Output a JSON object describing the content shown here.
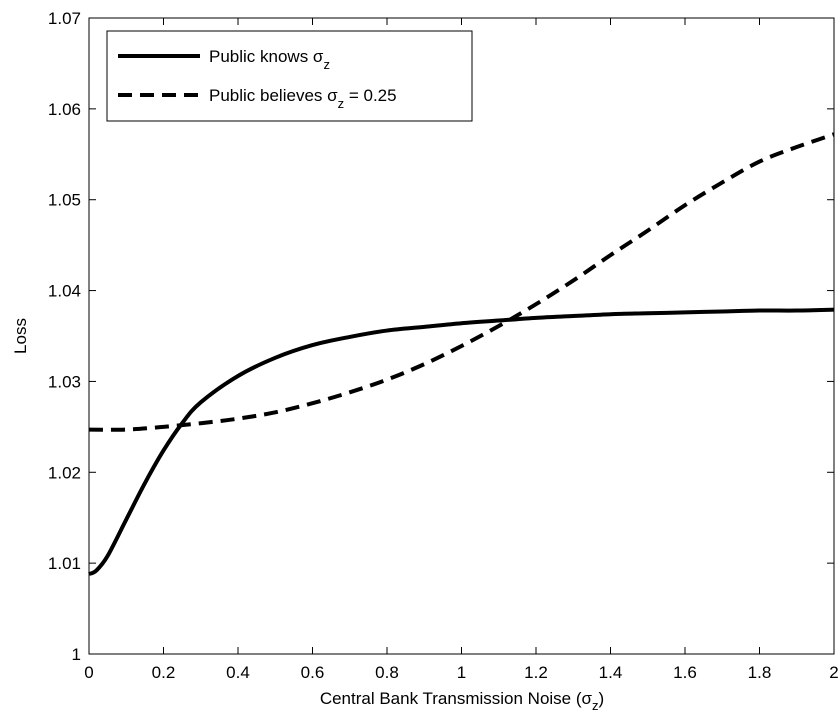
{
  "chart_data": {
    "type": "line",
    "title": "",
    "xlabel": "Central Bank Transmission Noise (σ",
    "xlabel_sub": "z",
    "xlabel_close": ")",
    "ylabel": "Loss",
    "xlim": [
      0,
      2
    ],
    "ylim": [
      1,
      1.07
    ],
    "xticks": [
      0,
      0.2,
      0.4,
      0.6,
      0.8,
      1,
      1.2,
      1.4,
      1.6,
      1.8,
      2
    ],
    "xtick_labels": [
      "0",
      "0.2",
      "0.4",
      "0.6",
      "0.8",
      "1",
      "1.2",
      "1.4",
      "1.6",
      "1.8",
      "2"
    ],
    "yticks": [
      1,
      1.01,
      1.02,
      1.03,
      1.04,
      1.05,
      1.06,
      1.07
    ],
    "ytick_labels": [
      "1",
      "1.01",
      "1.02",
      "1.03",
      "1.04",
      "1.05",
      "1.06",
      "1.07"
    ],
    "grid": false,
    "legend_position": "top-left",
    "series": [
      {
        "name": "Public knows σ",
        "name_sub": "z",
        "name_suffix": "",
        "style": "solid",
        "color": "#000000",
        "x": [
          0,
          0.02,
          0.05,
          0.1,
          0.15,
          0.2,
          0.25,
          0.3,
          0.4,
          0.5,
          0.6,
          0.7,
          0.8,
          0.9,
          1.0,
          1.1,
          1.2,
          1.3,
          1.4,
          1.5,
          1.6,
          1.7,
          1.8,
          1.9,
          2.0
        ],
        "y": [
          1.0088,
          1.0092,
          1.0108,
          1.0148,
          1.0188,
          1.0224,
          1.0254,
          1.0277,
          1.0306,
          1.0326,
          1.034,
          1.0349,
          1.0356,
          1.036,
          1.0364,
          1.0367,
          1.037,
          1.0372,
          1.0374,
          1.0375,
          1.0376,
          1.0377,
          1.0378,
          1.0378,
          1.0379
        ]
      },
      {
        "name": "Public believes σ",
        "name_sub": "z",
        "name_suffix": " = 0.25",
        "style": "dashed",
        "color": "#000000",
        "x": [
          0,
          0.1,
          0.2,
          0.3,
          0.4,
          0.5,
          0.6,
          0.7,
          0.8,
          0.9,
          1.0,
          1.1,
          1.2,
          1.3,
          1.4,
          1.5,
          1.6,
          1.7,
          1.8,
          1.9,
          2.0
        ],
        "y": [
          1.0247,
          1.0247,
          1.025,
          1.0254,
          1.0259,
          1.0266,
          1.0276,
          1.0288,
          1.0302,
          1.0319,
          1.0339,
          1.0361,
          1.0385,
          1.0411,
          1.0439,
          1.0466,
          1.0494,
          1.0519,
          1.0542,
          1.0558,
          1.0572
        ]
      }
    ]
  }
}
